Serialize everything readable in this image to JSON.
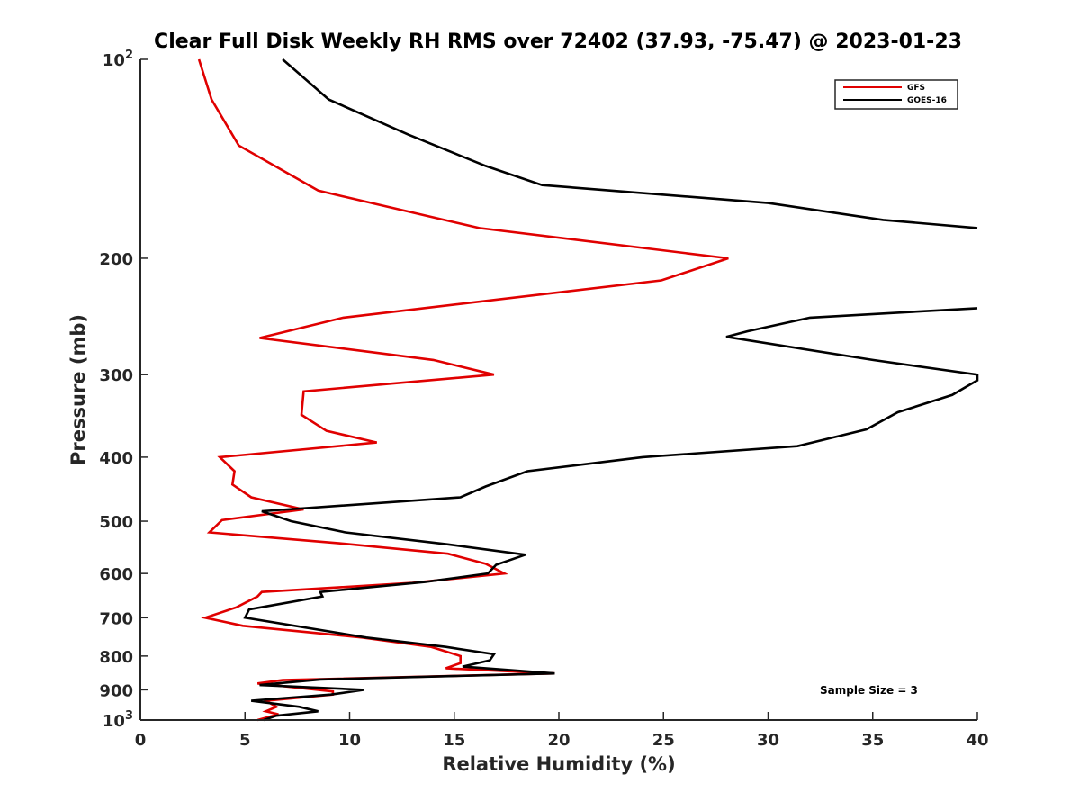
{
  "chart_data": {
    "type": "line",
    "title": "Clear Full Disk Weekly RH RMS over 72402 (37.93, -75.47) @ 2023-01-23",
    "xlabel": "Relative Humidity (%)",
    "ylabel": "Pressure (mb)",
    "xlim": [
      0,
      40
    ],
    "ylim": [
      100,
      1000
    ],
    "yscale": "log",
    "y_reversed": true,
    "x_ticks": [
      {
        "value": 0,
        "label": "0"
      },
      {
        "value": 5,
        "label": "5"
      },
      {
        "value": 10,
        "label": "10"
      },
      {
        "value": 15,
        "label": "15"
      },
      {
        "value": 20,
        "label": "20"
      },
      {
        "value": 25,
        "label": "25"
      },
      {
        "value": 30,
        "label": "30"
      },
      {
        "value": 35,
        "label": "35"
      },
      {
        "value": 40,
        "label": "40"
      }
    ],
    "y_ticks": [
      {
        "value": 100,
        "base": "10",
        "exp": "2"
      },
      {
        "value": 200,
        "base": "200",
        "exp": ""
      },
      {
        "value": 300,
        "base": "300",
        "exp": ""
      },
      {
        "value": 400,
        "base": "400",
        "exp": ""
      },
      {
        "value": 500,
        "base": "500",
        "exp": ""
      },
      {
        "value": 600,
        "base": "600",
        "exp": ""
      },
      {
        "value": 700,
        "base": "700",
        "exp": ""
      },
      {
        "value": 800,
        "base": "800",
        "exp": ""
      },
      {
        "value": 900,
        "base": "900",
        "exp": ""
      },
      {
        "value": 1000,
        "base": "10",
        "exp": "3"
      }
    ],
    "legend_position": "top-right",
    "annotation": "Sample Size = 3",
    "series": [
      {
        "name": "GFS",
        "color": "#e00000",
        "points": [
          [
            2.8,
            100
          ],
          [
            3.4,
            115
          ],
          [
            4.7,
            135
          ],
          [
            8.5,
            158
          ],
          [
            16.2,
            180
          ],
          [
            28.1,
            200
          ],
          [
            24.9,
            216
          ],
          [
            9.7,
            246
          ],
          [
            5.7,
            264
          ],
          [
            14.0,
            285
          ],
          [
            16.9,
            300
          ],
          [
            7.8,
            318
          ],
          [
            7.7,
            345
          ],
          [
            8.9,
            365
          ],
          [
            11.3,
            380
          ],
          [
            3.8,
            400
          ],
          [
            4.5,
            420
          ],
          [
            4.4,
            440
          ],
          [
            5.3,
            460
          ],
          [
            7.8,
            480
          ],
          [
            3.9,
            498
          ],
          [
            3.3,
            520
          ],
          [
            9.5,
            540
          ],
          [
            14.7,
            560
          ],
          [
            16.5,
            580
          ],
          [
            17.4,
            600
          ],
          [
            13.0,
            620
          ],
          [
            5.8,
            640
          ],
          [
            5.6,
            650
          ],
          [
            4.6,
            675
          ],
          [
            3.1,
            700
          ],
          [
            4.9,
            720
          ],
          [
            10.6,
            750
          ],
          [
            13.9,
            775
          ],
          [
            15.3,
            800
          ],
          [
            15.3,
            820
          ],
          [
            14.6,
            835
          ],
          [
            19.8,
            850
          ],
          [
            6.8,
            870
          ],
          [
            5.6,
            880
          ],
          [
            9.2,
            905
          ],
          [
            9.2,
            915
          ],
          [
            6.0,
            935
          ],
          [
            6.5,
            955
          ],
          [
            6.0,
            970
          ],
          [
            6.6,
            980
          ],
          [
            5.6,
            1000
          ]
        ]
      },
      {
        "name": "GOES-16",
        "color": "#000000",
        "points": [
          [
            6.8,
            100
          ],
          [
            9.0,
            115
          ],
          [
            12.8,
            130
          ],
          [
            16.5,
            145
          ],
          [
            19.2,
            155
          ],
          [
            30.0,
            165
          ],
          [
            35.5,
            175
          ],
          [
            40.0,
            180
          ],
          [
            null,
            null
          ],
          [
            40.0,
            238
          ],
          [
            32.0,
            246
          ],
          [
            29.0,
            258
          ],
          [
            28.0,
            263
          ],
          [
            35.0,
            285
          ],
          [
            40.0,
            300
          ],
          [
            40.0,
            306
          ],
          [
            38.8,
            322
          ],
          [
            36.2,
            342
          ],
          [
            34.7,
            363
          ],
          [
            31.4,
            385
          ],
          [
            24.0,
            400
          ],
          [
            18.5,
            420
          ],
          [
            16.5,
            443
          ],
          [
            15.3,
            460
          ],
          [
            5.8,
            483
          ],
          [
            7.2,
            500
          ],
          [
            9.8,
            520
          ],
          [
            14.7,
            542
          ],
          [
            18.4,
            562
          ],
          [
            17.0,
            582
          ],
          [
            16.6,
            600
          ],
          [
            13.6,
            618
          ],
          [
            8.6,
            640
          ],
          [
            8.7,
            650
          ],
          [
            5.2,
            680
          ],
          [
            5.0,
            700
          ],
          [
            10.8,
            750
          ],
          [
            14.6,
            775
          ],
          [
            16.9,
            795
          ],
          [
            16.7,
            812
          ],
          [
            15.4,
            830
          ],
          [
            19.8,
            850
          ],
          [
            8.6,
            868
          ],
          [
            5.7,
            885
          ],
          [
            10.7,
            900
          ],
          [
            9.1,
            915
          ],
          [
            5.3,
            935
          ],
          [
            7.6,
            955
          ],
          [
            8.5,
            970
          ],
          [
            6.5,
            985
          ],
          [
            5.9,
            1000
          ]
        ]
      }
    ]
  }
}
